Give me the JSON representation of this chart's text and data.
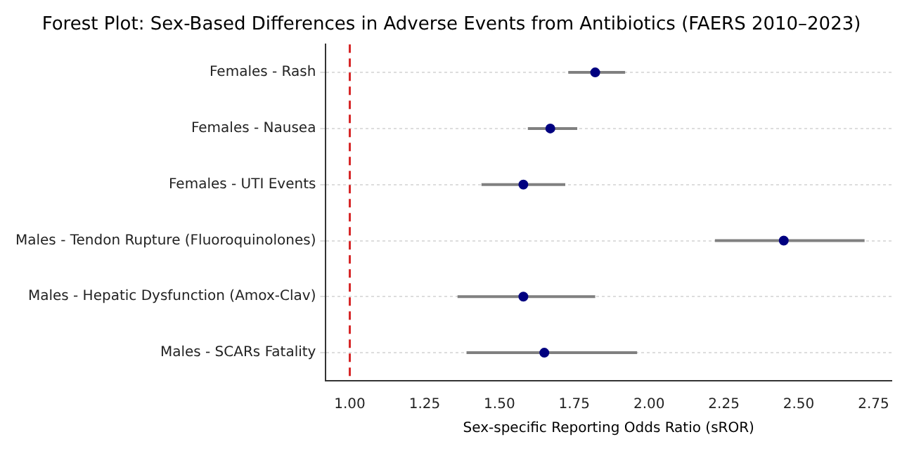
{
  "chart_data": {
    "type": "scatter",
    "orientation": "horizontal",
    "title": "Forest Plot: Sex-Based Differences in Adverse Events from Antibiotics (FAERS 2010–2023)",
    "xlabel": "Sex-specific Reporting Odds Ratio (sROR)",
    "categories": [
      "Females - Rash",
      "Females - Nausea",
      "Females - UTI Events",
      "Males - Tendon Rupture (Fluoroquinolones)",
      "Males - Hepatic Dysfunction (Amox-Clav)",
      "Males - SCARs Fatality"
    ],
    "series": [
      {
        "color": "#000080",
        "values": [
          1.82,
          1.67,
          1.58,
          2.45,
          1.58,
          1.65
        ],
        "errors": [
          [
            1.73,
            1.92
          ],
          [
            1.595,
            1.76
          ],
          [
            1.44,
            1.72
          ],
          [
            2.22,
            2.72
          ],
          [
            1.36,
            1.82
          ],
          [
            1.39,
            1.96
          ]
        ]
      }
    ],
    "xlim": [
      0.92,
      2.81
    ],
    "xticks": [
      {
        "value": 1,
        "label": "1.00"
      },
      {
        "value": 1.25,
        "label": "1.25"
      },
      {
        "value": 1.5,
        "label": "1.50"
      },
      {
        "value": 1.75,
        "label": "1.75"
      },
      {
        "value": 2,
        "label": "2.00"
      },
      {
        "value": 2.25,
        "label": "2.25"
      },
      {
        "value": 2.5,
        "label": "2.50"
      },
      {
        "value": 2.75,
        "label": "2.75"
      }
    ],
    "ref_lines": [
      {
        "axis": "x",
        "value": 1,
        "color": "#d62728",
        "line_style": "dashed"
      }
    ],
    "grid": "y",
    "marker": "circle",
    "legend": false
  }
}
